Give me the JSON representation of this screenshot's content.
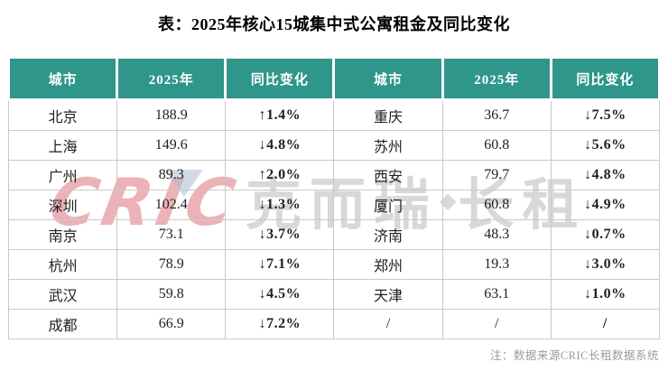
{
  "title": "表：2025年核心15城集中式公寓租金及同比变化",
  "note": "注：数据来源CRIC长租数据系统",
  "watermark": {
    "logo": "CRIC",
    "cn_left": "克而瑞",
    "diamond": "◆",
    "cn_right": "长租"
  },
  "colors": {
    "header_bg": "#2f968a",
    "up_red": "#cf2020",
    "down_green": "#00a843",
    "grid": "#c9c9c9",
    "note_gray": "#9b9b9b"
  },
  "headers": {
    "city": "城市",
    "year": "2025年",
    "change": "同比变化"
  },
  "rows": [
    {
      "l_city": "北京",
      "l_value": "188.9",
      "l_change": "↑1.4%",
      "l_dir": "up",
      "r_city": "重庆",
      "r_value": "36.7",
      "r_change": "↓7.5%",
      "r_dir": "down"
    },
    {
      "l_city": "上海",
      "l_value": "149.6",
      "l_change": "↓4.8%",
      "l_dir": "down",
      "r_city": "苏州",
      "r_value": "60.8",
      "r_change": "↓5.6%",
      "r_dir": "down"
    },
    {
      "l_city": "广州",
      "l_value": "89.3",
      "l_change": "↑2.0%",
      "l_dir": "up",
      "r_city": "西安",
      "r_value": "79.7",
      "r_change": "↓4.8%",
      "r_dir": "down"
    },
    {
      "l_city": "深圳",
      "l_value": "102.4",
      "l_change": "↓1.3%",
      "l_dir": "down",
      "r_city": "厦门",
      "r_value": "60.8",
      "r_change": "↓4.9%",
      "r_dir": "down"
    },
    {
      "l_city": "南京",
      "l_value": "73.1",
      "l_change": "↓3.7%",
      "l_dir": "down",
      "r_city": "济南",
      "r_value": "48.3",
      "r_change": "↓0.7%",
      "r_dir": "down"
    },
    {
      "l_city": "杭州",
      "l_value": "78.9",
      "l_change": "↓7.1%",
      "l_dir": "down",
      "r_city": "郑州",
      "r_value": "19.3",
      "r_change": "↓3.0%",
      "r_dir": "down"
    },
    {
      "l_city": "武汉",
      "l_value": "59.8",
      "l_change": "↓4.5%",
      "l_dir": "down",
      "r_city": "天津",
      "r_value": "63.1",
      "r_change": "↓1.0%",
      "r_dir": "down"
    },
    {
      "l_city": "成都",
      "l_value": "66.9",
      "l_change": "↓7.2%",
      "l_dir": "down",
      "r_city": "/",
      "r_value": "/",
      "r_change": "/",
      "r_dir": "flat"
    }
  ],
  "chart_data": {
    "type": "table",
    "title": "表：2025年核心15城集中式公寓租金及同比变化",
    "columns": [
      "城市",
      "2025年",
      "同比变化"
    ],
    "rows": [
      [
        "北京",
        188.9,
        "+1.4%"
      ],
      [
        "上海",
        149.6,
        "-4.8%"
      ],
      [
        "广州",
        89.3,
        "+2.0%"
      ],
      [
        "深圳",
        102.4,
        "-1.3%"
      ],
      [
        "南京",
        73.1,
        "-3.7%"
      ],
      [
        "杭州",
        78.9,
        "-7.1%"
      ],
      [
        "武汉",
        59.8,
        "-4.5%"
      ],
      [
        "成都",
        66.9,
        "-7.2%"
      ],
      [
        "重庆",
        36.7,
        "-7.5%"
      ],
      [
        "苏州",
        60.8,
        "-5.6%"
      ],
      [
        "西安",
        79.7,
        "-4.8%"
      ],
      [
        "厦门",
        60.8,
        "-4.9%"
      ],
      [
        "济南",
        48.3,
        "-0.7%"
      ],
      [
        "郑州",
        19.3,
        "-3.0%"
      ],
      [
        "天津",
        63.1,
        "-1.0%"
      ]
    ],
    "note": "注：数据来源CRIC长租数据系统"
  }
}
